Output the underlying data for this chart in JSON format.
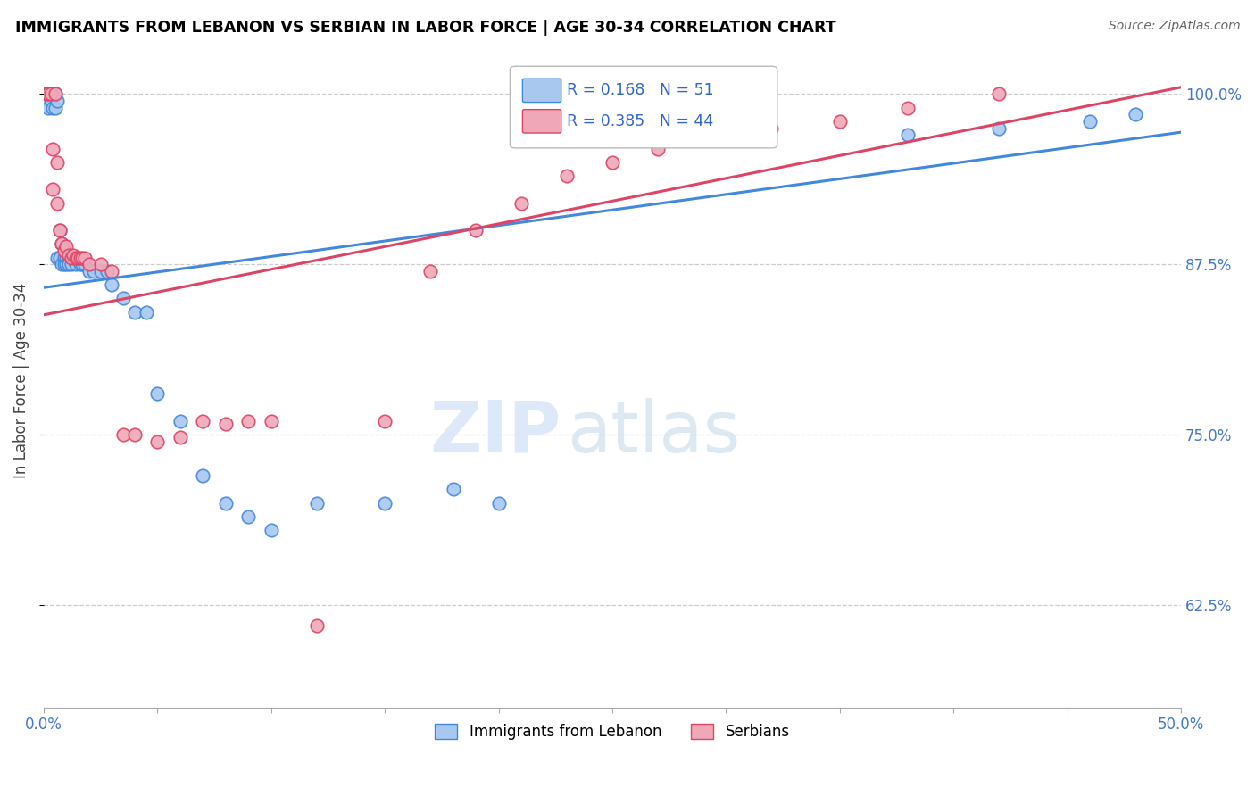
{
  "title": "IMMIGRANTS FROM LEBANON VS SERBIAN IN LABOR FORCE | AGE 30-34 CORRELATION CHART",
  "source": "Source: ZipAtlas.com",
  "ylabel": "In Labor Force | Age 30-34",
  "ytick_labels": [
    "100.0%",
    "87.5%",
    "75.0%",
    "62.5%"
  ],
  "ytick_values": [
    1.0,
    0.875,
    0.75,
    0.625
  ],
  "xmin": 0.0,
  "xmax": 0.5,
  "ymin": 0.55,
  "ymax": 1.03,
  "color_lebanon": "#a8c8f0",
  "color_serbian": "#f0a8b8",
  "color_line_lebanon": "#4488dd",
  "color_line_serbian": "#dd4466",
  "watermark_zip": "ZIP",
  "watermark_atlas": "atlas",
  "lebanon_x": [
    0.001,
    0.002,
    0.002,
    0.003,
    0.003,
    0.004,
    0.004,
    0.005,
    0.005,
    0.006,
    0.006,
    0.007,
    0.007,
    0.008,
    0.008,
    0.009,
    0.009,
    0.01,
    0.01,
    0.011,
    0.011,
    0.012,
    0.012,
    0.013,
    0.014,
    0.015,
    0.016,
    0.017,
    0.018,
    0.02,
    0.022,
    0.025,
    0.028,
    0.03,
    0.035,
    0.04,
    0.045,
    0.05,
    0.06,
    0.07,
    0.08,
    0.09,
    0.1,
    0.12,
    0.15,
    0.18,
    0.2,
    0.38,
    0.42,
    0.46,
    0.48
  ],
  "lebanon_y": [
    1.0,
    1.0,
    0.99,
    1.0,
    0.995,
    1.0,
    0.99,
    1.0,
    0.99,
    0.995,
    0.88,
    0.9,
    0.88,
    0.89,
    0.875,
    0.88,
    0.875,
    0.88,
    0.875,
    0.88,
    0.875,
    0.88,
    0.875,
    0.88,
    0.875,
    0.88,
    0.875,
    0.875,
    0.875,
    0.87,
    0.87,
    0.87,
    0.87,
    0.86,
    0.85,
    0.84,
    0.84,
    0.78,
    0.76,
    0.72,
    0.7,
    0.69,
    0.68,
    0.7,
    0.7,
    0.71,
    0.7,
    0.97,
    0.975,
    0.98,
    0.985
  ],
  "serbian_x": [
    0.001,
    0.002,
    0.003,
    0.004,
    0.004,
    0.005,
    0.006,
    0.006,
    0.007,
    0.008,
    0.009,
    0.01,
    0.011,
    0.012,
    0.013,
    0.014,
    0.015,
    0.016,
    0.017,
    0.018,
    0.02,
    0.025,
    0.03,
    0.035,
    0.04,
    0.05,
    0.06,
    0.07,
    0.08,
    0.09,
    0.1,
    0.12,
    0.15,
    0.17,
    0.19,
    0.21,
    0.23,
    0.25,
    0.27,
    0.3,
    0.32,
    0.35,
    0.38,
    0.42
  ],
  "serbian_y": [
    1.0,
    1.0,
    1.0,
    0.96,
    0.93,
    1.0,
    0.95,
    0.92,
    0.9,
    0.89,
    0.885,
    0.888,
    0.882,
    0.88,
    0.882,
    0.88,
    0.88,
    0.88,
    0.88,
    0.88,
    0.875,
    0.875,
    0.87,
    0.75,
    0.75,
    0.745,
    0.748,
    0.76,
    0.758,
    0.76,
    0.76,
    0.61,
    0.76,
    0.87,
    0.9,
    0.92,
    0.94,
    0.95,
    0.96,
    0.97,
    0.975,
    0.98,
    0.99,
    1.0
  ],
  "line_lebanon_x0": 0.0,
  "line_lebanon_y0": 0.858,
  "line_lebanon_x1": 0.5,
  "line_lebanon_y1": 0.972,
  "line_serbian_x0": 0.0,
  "line_serbian_y0": 0.838,
  "line_serbian_x1": 0.5,
  "line_serbian_y1": 1.005
}
